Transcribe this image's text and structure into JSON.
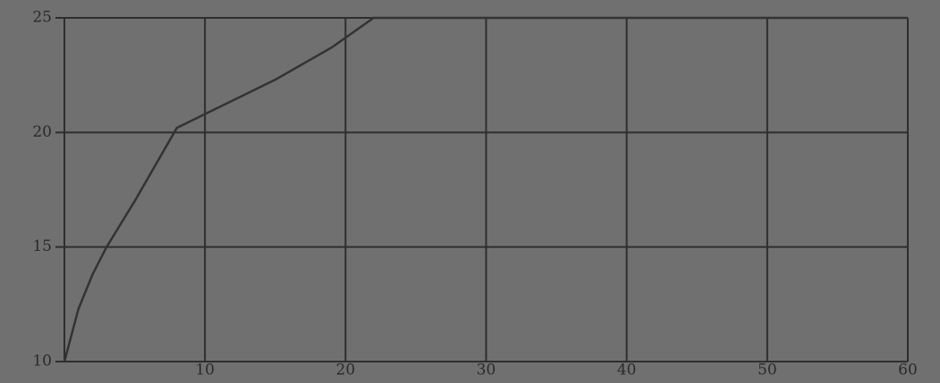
{
  "chart_data": {
    "type": "line",
    "x": [
      0,
      1,
      2,
      3,
      5,
      8,
      10,
      15,
      19,
      22,
      30,
      40,
      50,
      60
    ],
    "values": [
      10,
      12.3,
      13.8,
      15,
      17,
      20.2,
      20.8,
      22.3,
      23.7,
      25,
      25,
      25,
      25,
      25
    ],
    "color": "#333333",
    "xlim": [
      0,
      60
    ],
    "xticks": [
      10,
      20,
      30,
      40,
      50,
      60
    ],
    "ylim": [
      10,
      25
    ],
    "yticks": [
      10,
      15,
      20,
      25
    ],
    "grid": true
  }
}
